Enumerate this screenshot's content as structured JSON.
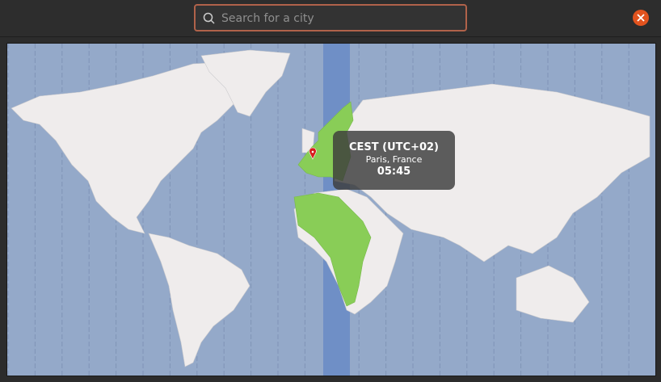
{
  "search": {
    "placeholder": "Search for a city",
    "value": ""
  },
  "close_icon": "close-icon",
  "colors": {
    "accent": "#e2531e",
    "ocean": "#94a9c9",
    "selected_zone": "#6f8fc6",
    "highlight_land": "#89cd57",
    "land": "#efecec"
  },
  "tooltip": {
    "zone": "CEST (UTC+02)",
    "city": "Paris, France",
    "time": "05:45"
  }
}
